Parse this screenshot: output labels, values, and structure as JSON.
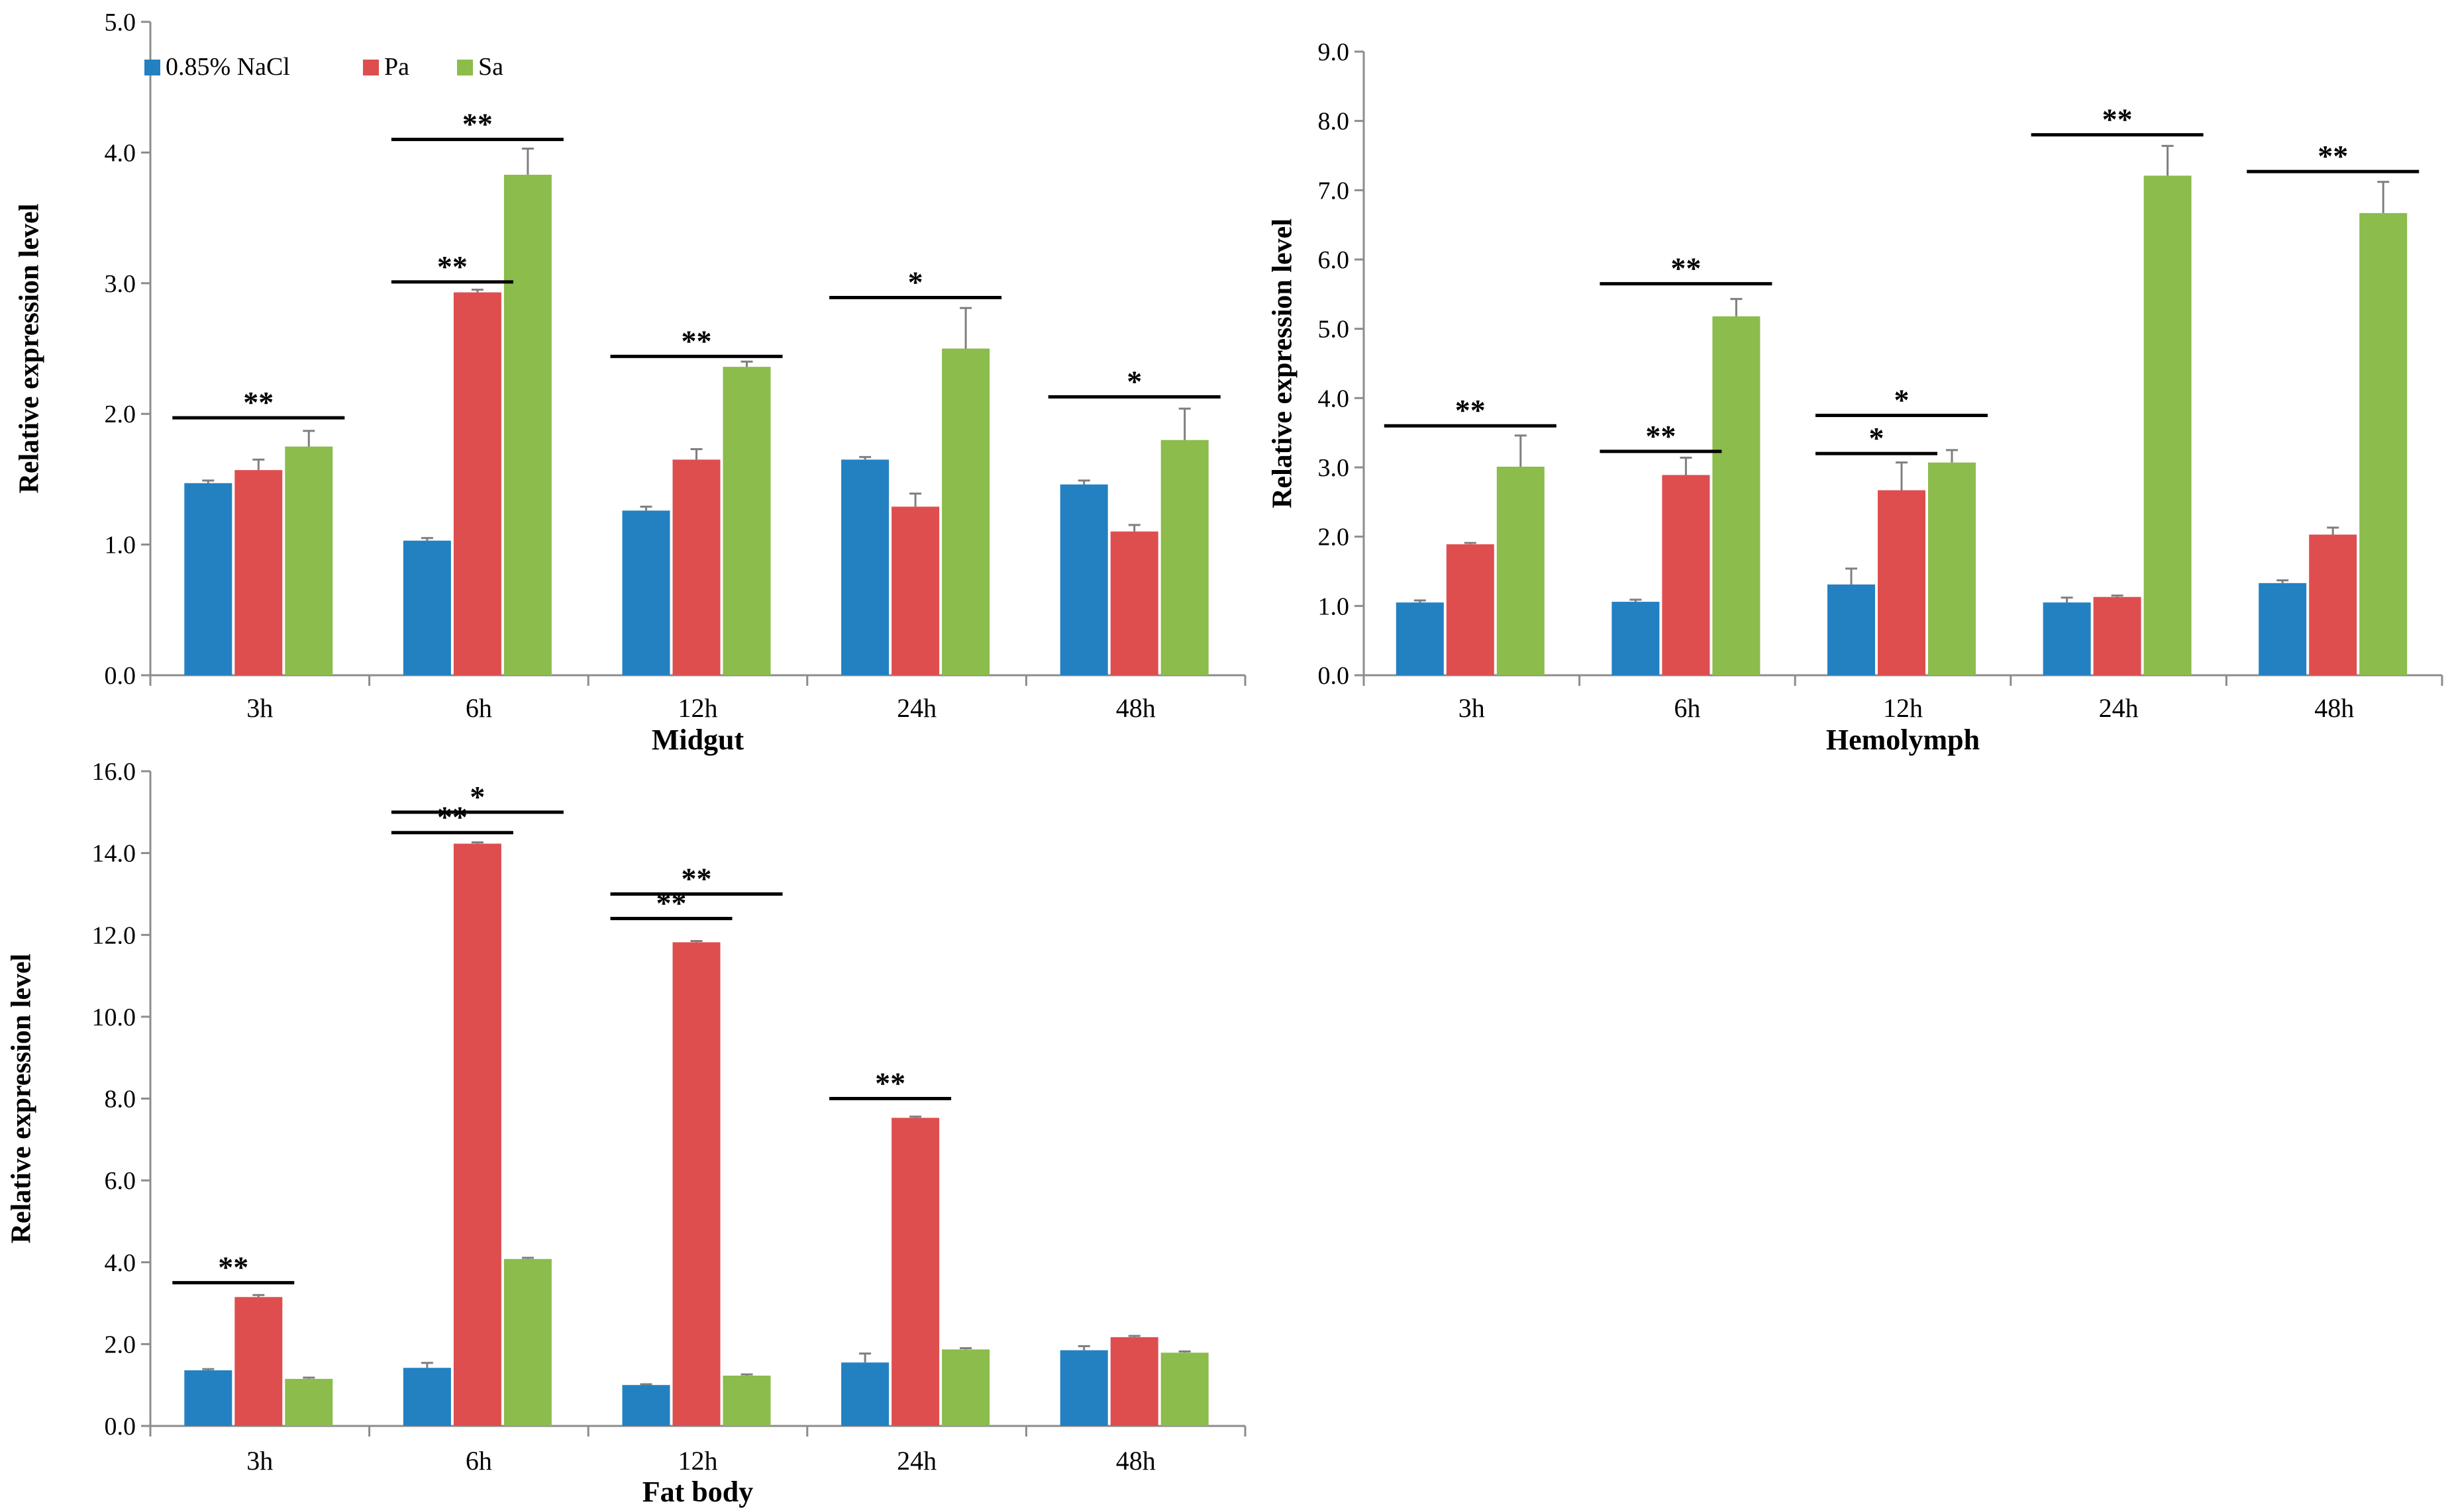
{
  "colors": {
    "nacl": "#2381c2",
    "pa": "#de4e4f",
    "sa": "#8bbc4c",
    "axis": "#8c8c8c",
    "error": "#7f7f7f",
    "sigline": "#000000"
  },
  "legend": [
    {
      "label": "0.85% NaCl",
      "color": "#2381c2"
    },
    {
      "label": "Pa",
      "color": "#de4e4f"
    },
    {
      "label": "Sa",
      "color": "#8bbc4c"
    }
  ],
  "chart_data": [
    {
      "type": "bar",
      "title": "Midgut",
      "ylabel": "Relative expression level",
      "ylim": [
        0,
        5
      ],
      "ytick_step": 1,
      "yticks": [
        "0.0",
        "1.0",
        "2.0",
        "3.0",
        "4.0",
        "5.0"
      ],
      "categories": [
        "3h",
        "6h",
        "12h",
        "24h",
        "48h"
      ],
      "series": [
        {
          "name": "0.85% NaCl",
          "values": [
            1.47,
            1.03,
            1.26,
            1.65,
            1.46
          ],
          "errors": [
            0.02,
            0.02,
            0.03,
            0.02,
            0.03
          ]
        },
        {
          "name": "Pa",
          "values": [
            1.57,
            2.93,
            1.65,
            1.29,
            1.1
          ],
          "errors": [
            0.08,
            0.02,
            0.08,
            0.1,
            0.05
          ]
        },
        {
          "name": "Sa",
          "values": [
            1.75,
            3.83,
            2.36,
            2.5,
            1.8
          ],
          "errors": [
            0.12,
            0.2,
            0.04,
            0.31,
            0.24
          ]
        }
      ],
      "significance": [
        {
          "category": 0,
          "from": 0,
          "to": 2,
          "y": 1.97,
          "label": "**"
        },
        {
          "category": 1,
          "from": 0,
          "to": 1,
          "y": 3.01,
          "label": "**"
        },
        {
          "category": 1,
          "from": 0,
          "to": 2,
          "y": 4.1,
          "label": "**"
        },
        {
          "category": 2,
          "from": 0,
          "to": 2,
          "y": 2.44,
          "label": "**"
        },
        {
          "category": 3,
          "from": 0,
          "to": 2,
          "y": 2.89,
          "label": "*"
        },
        {
          "category": 4,
          "from": 0,
          "to": 2,
          "y": 2.13,
          "label": "*"
        }
      ],
      "legend": "top-left"
    },
    {
      "type": "bar",
      "title": "Hemolymph",
      "ylabel": "Relative expression level",
      "ylim": [
        0,
        9
      ],
      "ytick_step": 1,
      "yticks": [
        "0.0",
        "1.0",
        "2.0",
        "3.0",
        "4.0",
        "5.0",
        "6.0",
        "7.0",
        "8.0",
        "9.0"
      ],
      "categories": [
        "3h",
        "6h",
        "12h",
        "24h",
        "48h"
      ],
      "series": [
        {
          "name": "0.85% NaCl",
          "values": [
            1.05,
            1.06,
            1.31,
            1.05,
            1.33
          ],
          "errors": [
            0.03,
            0.03,
            0.23,
            0.07,
            0.04
          ]
        },
        {
          "name": "Pa",
          "values": [
            1.89,
            2.89,
            2.67,
            1.13,
            2.03
          ],
          "errors": [
            0.02,
            0.25,
            0.4,
            0.02,
            0.1
          ]
        },
        {
          "name": "Sa",
          "values": [
            3.01,
            5.18,
            3.07,
            7.21,
            6.67
          ],
          "errors": [
            0.45,
            0.25,
            0.18,
            0.43,
            0.45
          ]
        }
      ],
      "significance": [
        {
          "category": 0,
          "from": 0,
          "to": 2,
          "y": 3.6,
          "label": "**"
        },
        {
          "category": 1,
          "from": 0,
          "to": 1,
          "y": 3.23,
          "label": "**"
        },
        {
          "category": 1,
          "from": 0,
          "to": 2,
          "y": 5.65,
          "label": "**"
        },
        {
          "category": 2,
          "from": 0,
          "to": 1,
          "y": 3.2,
          "label": "*"
        },
        {
          "category": 2,
          "from": 0,
          "to": 2,
          "y": 3.75,
          "label": "*"
        },
        {
          "category": 3,
          "from": 0,
          "to": 2,
          "y": 7.8,
          "label": "**"
        },
        {
          "category": 4,
          "from": 0,
          "to": 2,
          "y": 7.27,
          "label": "**"
        }
      ]
    },
    {
      "type": "bar",
      "title": "Fat body",
      "ylabel": "Relative expression level",
      "ylim": [
        0,
        16
      ],
      "ytick_step": 2,
      "yticks": [
        "0.0",
        "2.0",
        "4.0",
        "6.0",
        "8.0",
        "10.0",
        "12.0",
        "14.0",
        "16.0"
      ],
      "categories": [
        "3h",
        "6h",
        "12h",
        "24h",
        "48h"
      ],
      "series": [
        {
          "name": "0.85% NaCl",
          "values": [
            1.36,
            1.42,
            1.0,
            1.55,
            1.85
          ],
          "errors": [
            0.03,
            0.12,
            0.02,
            0.22,
            0.1
          ]
        },
        {
          "name": "Pa",
          "values": [
            3.15,
            14.23,
            11.82,
            7.53,
            2.17
          ],
          "errors": [
            0.05,
            0.03,
            0.03,
            0.03,
            0.03
          ]
        },
        {
          "name": "Sa",
          "values": [
            1.15,
            4.08,
            1.23,
            1.87,
            1.79
          ],
          "errors": [
            0.03,
            0.03,
            0.03,
            0.03,
            0.03
          ]
        }
      ],
      "significance": [
        {
          "category": 0,
          "from": 0,
          "to": 1,
          "y": 3.5,
          "label": "**"
        },
        {
          "category": 1,
          "from": 0,
          "to": 1,
          "y": 14.5,
          "label": "**"
        },
        {
          "category": 1,
          "from": 0,
          "to": 2,
          "y": 15.0,
          "label": "*"
        },
        {
          "category": 2,
          "from": 0,
          "to": 1,
          "y": 12.4,
          "label": "**"
        },
        {
          "category": 2,
          "from": 0,
          "to": 2,
          "y": 13.0,
          "label": "**"
        },
        {
          "category": 3,
          "from": 0,
          "to": 1,
          "y": 8.0,
          "label": "**"
        }
      ]
    }
  ]
}
